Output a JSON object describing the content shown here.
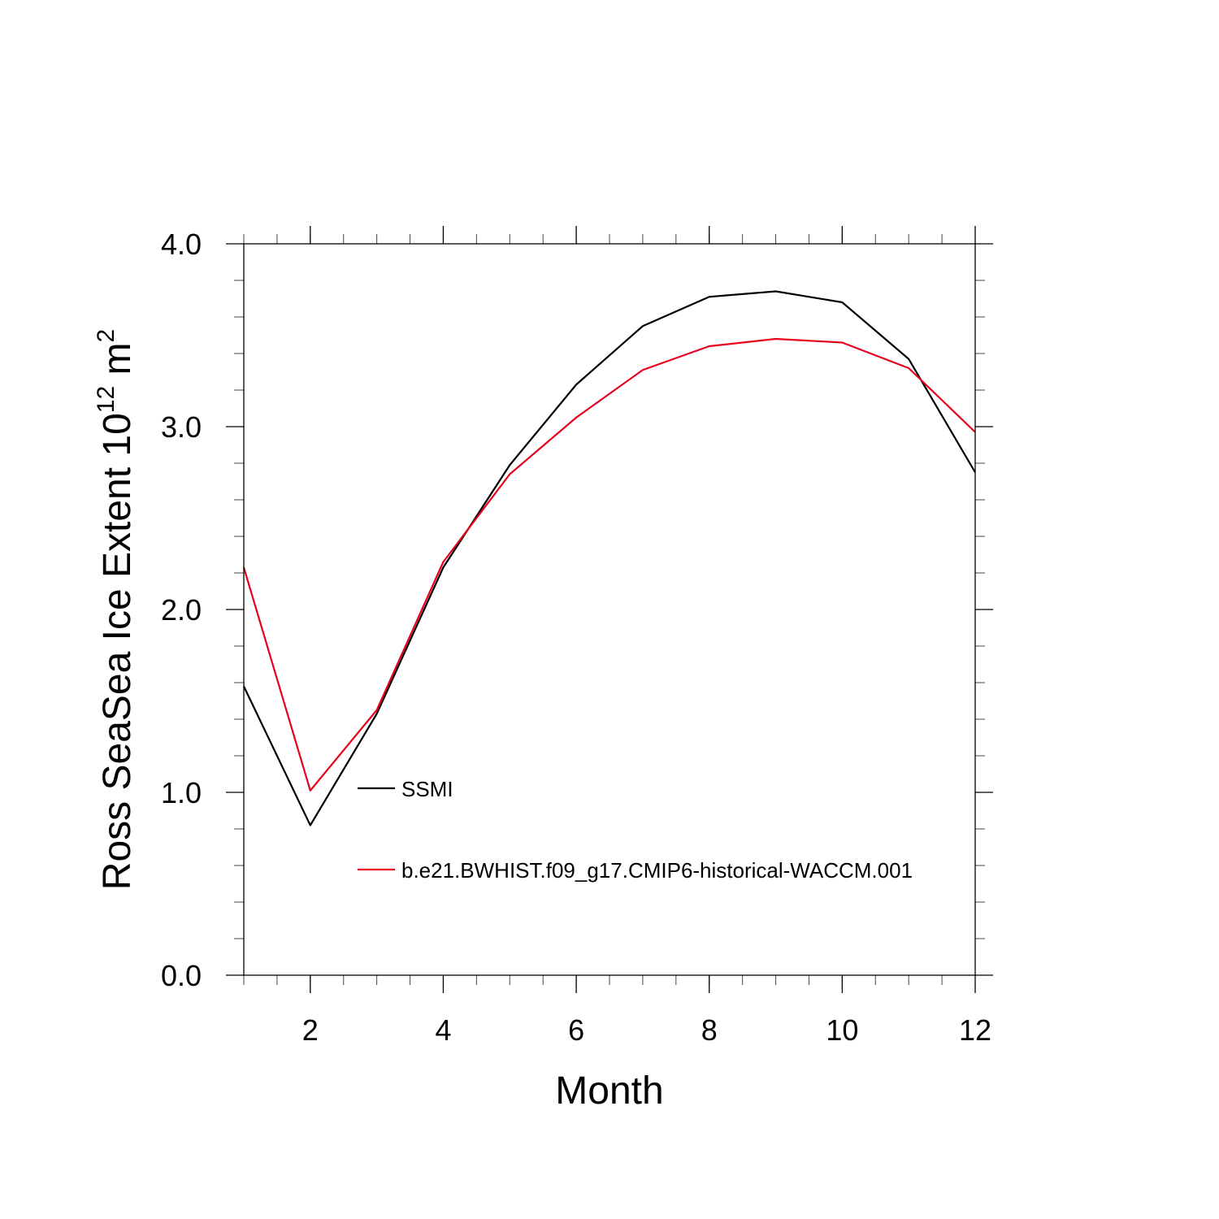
{
  "chart_data": {
    "type": "line",
    "title": "",
    "xlabel": "Month",
    "ylabel": "Ross SeaSea Ice Extent 10",
    "ylabel_exp": "12",
    "ylabel_unit": " m",
    "ylabel_unit_exp": "2",
    "xlim": [
      1,
      12
    ],
    "ylim": [
      0.0,
      4.0
    ],
    "xticks": [
      2,
      4,
      6,
      8,
      10,
      12
    ],
    "xtick_labels": [
      "2",
      "4",
      "6",
      "8",
      "10",
      "12"
    ],
    "yticks": [
      0.0,
      1.0,
      2.0,
      3.0,
      4.0
    ],
    "ytick_labels": [
      "0.0",
      "1.0",
      "2.0",
      "3.0",
      "4.0"
    ],
    "grid": false,
    "legend_position": "inside-bottom-left",
    "x": [
      1,
      2,
      3,
      4,
      5,
      6,
      7,
      8,
      9,
      10,
      11,
      12
    ],
    "series": [
      {
        "name": "SSMI",
        "color": "#000000",
        "values": [
          1.58,
          0.82,
          1.43,
          2.23,
          2.79,
          3.23,
          3.55,
          3.71,
          3.74,
          3.68,
          3.37,
          2.75
        ]
      },
      {
        "name": "b.e21.BWHIST.f09_g17.CMIP6-historical-WACCM.001",
        "color": "#e8001c",
        "values": [
          2.23,
          1.01,
          1.45,
          2.26,
          2.74,
          3.05,
          3.31,
          3.44,
          3.48,
          3.46,
          3.32,
          2.97
        ]
      }
    ]
  }
}
